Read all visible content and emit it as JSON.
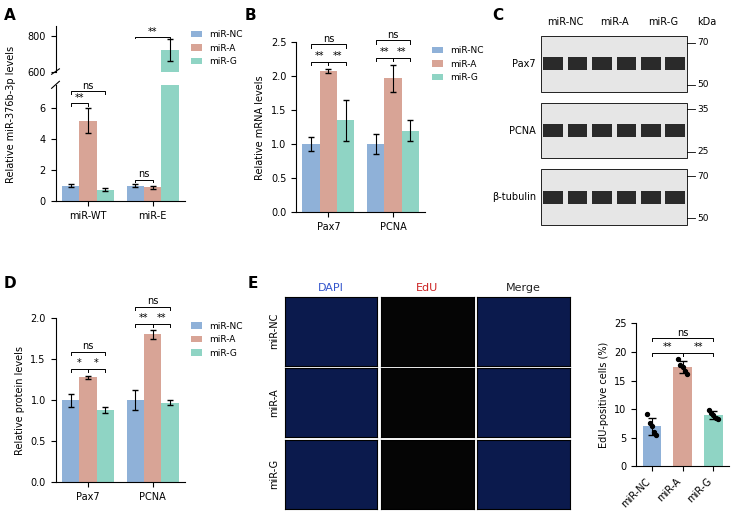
{
  "chart_data": [
    {
      "panel": "A",
      "type": "bar",
      "y_label": "Relative miR-376b-3p levels",
      "categories": [
        "miR-WT",
        "miR-E"
      ],
      "series": [
        {
          "name": "miR-NC",
          "color": "#8fb1d8",
          "values": [
            1.0,
            1.0
          ],
          "errors": [
            0.1,
            0.1
          ]
        },
        {
          "name": "miR-A",
          "color": "#d8a496",
          "values": [
            5.2,
            0.9
          ],
          "errors": [
            0.8,
            0.1
          ]
        },
        {
          "name": "miR-G",
          "color": "#8fd4c4",
          "values": [
            0.75,
            720
          ],
          "errors": [
            0.1,
            60
          ]
        }
      ],
      "segments": [
        {
          "ylim": [
            0,
            7.5
          ],
          "yticks": [
            0,
            2,
            4,
            6
          ]
        },
        {
          "ylim": [
            600,
            850
          ],
          "yticks": [
            600,
            800
          ]
        }
      ],
      "legend": "right",
      "annotations": [
        {
          "category": "miR-WT",
          "from": "miR-NC",
          "to": "miR-A",
          "text": "**"
        },
        {
          "category": "miR-WT",
          "from": "miR-NC",
          "to": "miR-G",
          "text": "ns"
        },
        {
          "category": "miR-E",
          "from": "miR-NC",
          "to": "miR-A",
          "text": "ns"
        },
        {
          "category": "miR-E",
          "from": "miR-NC",
          "to": "miR-G",
          "text": "**"
        }
      ]
    },
    {
      "panel": "B",
      "type": "bar",
      "y_label": "Relative mRNA levels",
      "categories": [
        "Pax7",
        "PCNA"
      ],
      "series": [
        {
          "name": "miR-NC",
          "color": "#8fb1d8",
          "values": [
            1.0,
            1.0
          ],
          "errors": [
            0.1,
            0.15
          ]
        },
        {
          "name": "miR-A",
          "color": "#d8a496",
          "values": [
            2.08,
            1.97
          ],
          "errors": [
            0.03,
            0.2
          ]
        },
        {
          "name": "miR-G",
          "color": "#8fd4c4",
          "values": [
            1.35,
            1.2
          ],
          "errors": [
            0.3,
            0.15
          ]
        }
      ],
      "ylim": [
        0,
        2.5
      ],
      "yticks": [
        {
          "value": 0,
          "label": "0.0"
        },
        {
          "value": 0.5,
          "label": "0.5"
        },
        {
          "value": 1.0,
          "label": "1.0"
        },
        {
          "value": 1.5,
          "label": "1.5"
        },
        {
          "value": 2.0,
          "label": "2.0"
        },
        {
          "value": 2.5,
          "label": "2.5"
        }
      ],
      "legend": "right",
      "annotations": [
        {
          "category": "Pax7",
          "from": "miR-NC",
          "to": "miR-A",
          "text": "**"
        },
        {
          "category": "Pax7",
          "from": "miR-A",
          "to": "miR-G",
          "text": "**"
        },
        {
          "category": "Pax7",
          "from": "miR-NC",
          "to": "miR-G",
          "text": "ns"
        },
        {
          "category": "PCNA",
          "from": "miR-NC",
          "to": "miR-A",
          "text": "**"
        },
        {
          "category": "PCNA",
          "from": "miR-A",
          "to": "miR-G",
          "text": "**"
        },
        {
          "category": "PCNA",
          "from": "miR-NC",
          "to": "miR-G",
          "text": "ns"
        }
      ]
    },
    {
      "panel": "D",
      "type": "bar",
      "y_label": "Relative protein levels",
      "categories": [
        "Pax7",
        "PCNA"
      ],
      "series": [
        {
          "name": "miR-NC",
          "color": "#8fb1d8",
          "values": [
            1.0,
            1.0
          ],
          "errors": [
            0.08,
            0.12
          ]
        },
        {
          "name": "miR-A",
          "color": "#d8a496",
          "values": [
            1.28,
            1.8
          ],
          "errors": [
            0.02,
            0.05
          ]
        },
        {
          "name": "miR-G",
          "color": "#8fd4c4",
          "values": [
            0.88,
            0.97
          ],
          "errors": [
            0.04,
            0.03
          ]
        }
      ],
      "ylim": [
        0,
        2.0
      ],
      "yticks": [
        {
          "value": 0,
          "label": "0.0"
        },
        {
          "value": 0.5,
          "label": "0.5"
        },
        {
          "value": 1.0,
          "label": "1.0"
        },
        {
          "value": 1.5,
          "label": "1.5"
        },
        {
          "value": 2.0,
          "label": "2.0"
        }
      ],
      "legend": "right",
      "annotations": [
        {
          "category": "Pax7",
          "from": "miR-NC",
          "to": "miR-A",
          "text": "*"
        },
        {
          "category": "Pax7",
          "from": "miR-A",
          "to": "miR-G",
          "text": "*"
        },
        {
          "category": "Pax7",
          "from": "miR-NC",
          "to": "miR-G",
          "text": "ns"
        },
        {
          "category": "PCNA",
          "from": "miR-NC",
          "to": "miR-A",
          "text": "**"
        },
        {
          "category": "PCNA",
          "from": "miR-A",
          "to": "miR-G",
          "text": "**"
        },
        {
          "category": "PCNA",
          "from": "miR-NC",
          "to": "miR-G",
          "text": "ns"
        }
      ]
    },
    {
      "type": "bar",
      "y_label": "EdU-positive cells (%)",
      "categories": [
        "miR-NC",
        "miR-A",
        "miR-G"
      ],
      "values": [
        7.04,
        17.36,
        8.96
      ],
      "errors": [
        1.5,
        1.0,
        0.7
      ],
      "points": [
        [
          9.2,
          7.6,
          7.0,
          6.0,
          5.4
        ],
        [
          18.8,
          17.8,
          17.4,
          16.6,
          16.2
        ],
        [
          9.8,
          9.3,
          8.9,
          8.5,
          8.3
        ]
      ],
      "colors": [
        "#8fb1d8",
        "#d8a496",
        "#8fd4c4"
      ],
      "ylim": [
        0,
        25
      ],
      "yticks": [
        0,
        5,
        10,
        15,
        20,
        25
      ],
      "annotations": [
        {
          "from": "miR-NC",
          "to": "miR-A",
          "text": "**"
        },
        {
          "from": "miR-A",
          "to": "miR-G",
          "text": "**"
        },
        {
          "from": "miR-NC",
          "to": "miR-G",
          "text": "ns"
        }
      ]
    }
  ],
  "blot": {
    "panel": "C",
    "groups": [
      "miR-NC",
      "miR-A",
      "miR-G"
    ],
    "lanes_per_group": 2,
    "unit": "kDa",
    "rows": [
      {
        "label": "Pax7",
        "markers": [
          70,
          50
        ]
      },
      {
        "label": "PCNA",
        "markers": [
          35,
          25
        ]
      },
      {
        "label": "β-tubulin",
        "markers": [
          70,
          50
        ]
      }
    ]
  },
  "micrographs": {
    "panel": "E",
    "channels": [
      "DAPI",
      "EdU",
      "Merge"
    ],
    "rows": [
      "miR-NC",
      "miR-A",
      "miR-G"
    ]
  }
}
